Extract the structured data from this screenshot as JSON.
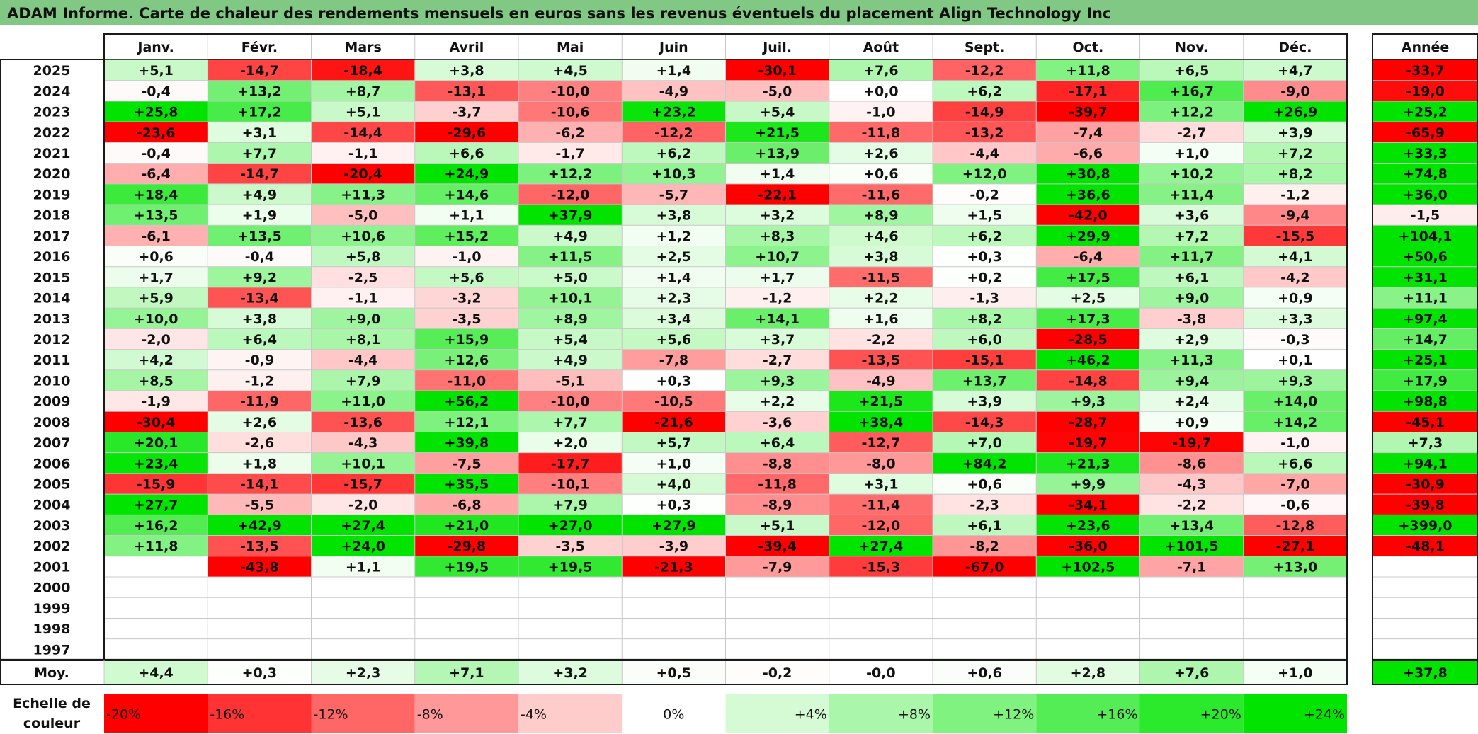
{
  "title": "ADAM Informe. Carte de chaleur des rendements mensuels en euros sans les revenus éventuels du placement Align Technology Inc",
  "chart_data": {
    "type": "heatmap",
    "title": "ADAM Informe. Carte de chaleur des rendements mensuels en euros sans les revenus éventuels du placement Align Technology Inc",
    "months": [
      "Janv.",
      "Févr.",
      "Mars",
      "Avril",
      "Mai",
      "Juin",
      "Juil.",
      "Août",
      "Sept.",
      "Oct.",
      "Nov.",
      "Déc."
    ],
    "annual_header": "Année",
    "rows": [
      {
        "year": "2025",
        "values": [
          "+5,1",
          "-14,7",
          "-18,4",
          "+3,8",
          "+4,5",
          "+1,4",
          "-30,1",
          "+7,6",
          "-12,2",
          "+11,8",
          "+6,5",
          "+4,7"
        ],
        "annual": "-33,7"
      },
      {
        "year": "2024",
        "values": [
          "-0,4",
          "+13,2",
          "+8,7",
          "-13,1",
          "-10,0",
          "-4,9",
          "-5,0",
          "+0,0",
          "+6,2",
          "-17,1",
          "+16,7",
          "-9,0"
        ],
        "annual": "-19,0"
      },
      {
        "year": "2023",
        "values": [
          "+25,8",
          "+17,2",
          "+5,1",
          "-3,7",
          "-10,6",
          "+23,2",
          "+5,4",
          "-1,0",
          "-14,9",
          "-39,7",
          "+12,2",
          "+26,9"
        ],
        "annual": "+25,2"
      },
      {
        "year": "2022",
        "values": [
          "-23,6",
          "+3,1",
          "-14,4",
          "-29,6",
          "-6,2",
          "-12,2",
          "+21,5",
          "-11,8",
          "-13,2",
          "-7,4",
          "-2,7",
          "+3,9"
        ],
        "annual": "-65,9"
      },
      {
        "year": "2021",
        "values": [
          "-0,4",
          "+7,7",
          "-1,1",
          "+6,6",
          "-1,7",
          "+6,2",
          "+13,9",
          "+2,6",
          "-4,4",
          "-6,6",
          "+1,0",
          "+7,2"
        ],
        "annual": "+33,3"
      },
      {
        "year": "2020",
        "values": [
          "-6,4",
          "-14,7",
          "-20,4",
          "+24,9",
          "+12,2",
          "+10,3",
          "+1,4",
          "+0,6",
          "+12,0",
          "+30,8",
          "+10,2",
          "+8,2"
        ],
        "annual": "+74,8"
      },
      {
        "year": "2019",
        "values": [
          "+18,4",
          "+4,9",
          "+11,3",
          "+14,6",
          "-12,0",
          "-5,7",
          "-22,1",
          "-11,6",
          "-0,2",
          "+36,6",
          "+11,4",
          "-1,2"
        ],
        "annual": "+36,0"
      },
      {
        "year": "2018",
        "values": [
          "+13,5",
          "+1,9",
          "-5,0",
          "+1,1",
          "+37,9",
          "+3,8",
          "+3,2",
          "+8,9",
          "+1,5",
          "-42,0",
          "+3,6",
          "-9,4"
        ],
        "annual": "-1,5"
      },
      {
        "year": "2017",
        "values": [
          "-6,1",
          "+13,5",
          "+10,6",
          "+15,2",
          "+4,9",
          "+1,2",
          "+8,3",
          "+4,6",
          "+6,2",
          "+29,9",
          "+7,2",
          "-15,5"
        ],
        "annual": "+104,1"
      },
      {
        "year": "2016",
        "values": [
          "+0,6",
          "-0,4",
          "+5,8",
          "-1,0",
          "+11,5",
          "+2,5",
          "+10,7",
          "+3,8",
          "+0,3",
          "-6,4",
          "+11,7",
          "+4,1"
        ],
        "annual": "+50,6"
      },
      {
        "year": "2015",
        "values": [
          "+1,7",
          "+9,2",
          "-2,5",
          "+5,6",
          "+5,0",
          "+1,4",
          "+1,7",
          "-11,5",
          "+0,2",
          "+17,5",
          "+6,1",
          "-4,2"
        ],
        "annual": "+31,1"
      },
      {
        "year": "2014",
        "values": [
          "+5,9",
          "-13,4",
          "-1,1",
          "-3,2",
          "+10,1",
          "+2,3",
          "-1,2",
          "+2,2",
          "-1,3",
          "+2,5",
          "+9,0",
          "+0,9"
        ],
        "annual": "+11,1"
      },
      {
        "year": "2013",
        "values": [
          "+10,0",
          "+3,8",
          "+9,0",
          "-3,5",
          "+8,9",
          "+3,4",
          "+14,1",
          "+1,6",
          "+8,2",
          "+17,3",
          "-3,8",
          "+3,3"
        ],
        "annual": "+97,4"
      },
      {
        "year": "2012",
        "values": [
          "-2,0",
          "+6,4",
          "+8,1",
          "+15,9",
          "+5,4",
          "+5,6",
          "+3,7",
          "-2,2",
          "+6,0",
          "-28,5",
          "+2,9",
          "-0,3"
        ],
        "annual": "+14,7"
      },
      {
        "year": "2011",
        "values": [
          "+4,2",
          "-0,9",
          "-4,4",
          "+12,6",
          "+4,9",
          "-7,8",
          "-2,7",
          "-13,5",
          "-15,1",
          "+46,2",
          "+11,3",
          "+0,1"
        ],
        "annual": "+25,1"
      },
      {
        "year": "2010",
        "values": [
          "+8,5",
          "-1,2",
          "+7,9",
          "-11,0",
          "-5,1",
          "+0,3",
          "+9,3",
          "-4,9",
          "+13,7",
          "-14,8",
          "+9,4",
          "+9,3"
        ],
        "annual": "+17,9"
      },
      {
        "year": "2009",
        "values": [
          "-1,9",
          "-11,9",
          "+11,0",
          "+56,2",
          "-10,0",
          "-10,5",
          "+2,2",
          "+21,5",
          "+3,9",
          "+9,3",
          "+2,4",
          "+14,0"
        ],
        "annual": "+98,8"
      },
      {
        "year": "2008",
        "values": [
          "-30,4",
          "+2,6",
          "-13,6",
          "+12,1",
          "+7,7",
          "-21,6",
          "-3,6",
          "+38,4",
          "-14,3",
          "-28,7",
          "+0,9",
          "+14,2"
        ],
        "annual": "-45,1"
      },
      {
        "year": "2007",
        "values": [
          "+20,1",
          "-2,6",
          "-4,3",
          "+39,8",
          "+2,0",
          "+5,7",
          "+6,4",
          "-12,7",
          "+7,0",
          "-19,7",
          "-19,7",
          "-1,0"
        ],
        "annual": "+7,3"
      },
      {
        "year": "2006",
        "values": [
          "+23,4",
          "+1,8",
          "+10,1",
          "-7,5",
          "-17,7",
          "+1,0",
          "-8,8",
          "-8,0",
          "+84,2",
          "+21,3",
          "-8,6",
          "+6,6"
        ],
        "annual": "+94,1"
      },
      {
        "year": "2005",
        "values": [
          "-15,9",
          "-14,1",
          "-15,7",
          "+35,5",
          "-10,1",
          "+4,0",
          "-11,8",
          "+3,1",
          "+0,6",
          "+9,9",
          "-4,3",
          "-7,0"
        ],
        "annual": "-30,9"
      },
      {
        "year": "2004",
        "values": [
          "+27,7",
          "-5,5",
          "-2,0",
          "-6,8",
          "+7,9",
          "+0,3",
          "-8,9",
          "-11,4",
          "-2,3",
          "-34,1",
          "-2,2",
          "-0,6"
        ],
        "annual": "-39,8"
      },
      {
        "year": "2003",
        "values": [
          "+16,2",
          "+42,9",
          "+27,4",
          "+21,0",
          "+27,0",
          "+27,9",
          "+5,1",
          "-12,0",
          "+6,1",
          "+23,6",
          "+13,4",
          "-12,8"
        ],
        "annual": "+399,0"
      },
      {
        "year": "2002",
        "values": [
          "+11,8",
          "-13,5",
          "+24,0",
          "-29,8",
          "-3,5",
          "-3,9",
          "-39,4",
          "+27,4",
          "-8,2",
          "-36,0",
          "+101,5",
          "-27,1"
        ],
        "annual": "-48,1"
      },
      {
        "year": "2001",
        "values": [
          "",
          "-43,8",
          "+1,1",
          "+19,5",
          "+19,5",
          "-21,3",
          "-7,9",
          "-15,3",
          "-67,0",
          "+102,5",
          "-7,1",
          "+13,0"
        ],
        "annual": ""
      },
      {
        "year": "2000",
        "values": [
          "",
          "",
          "",
          "",
          "",
          "",
          "",
          "",
          "",
          "",
          "",
          ""
        ],
        "annual": ""
      },
      {
        "year": "1999",
        "values": [
          "",
          "",
          "",
          "",
          "",
          "",
          "",
          "",
          "",
          "",
          "",
          ""
        ],
        "annual": ""
      },
      {
        "year": "1998",
        "values": [
          "",
          "",
          "",
          "",
          "",
          "",
          "",
          "",
          "",
          "",
          "",
          ""
        ],
        "annual": ""
      },
      {
        "year": "1997",
        "values": [
          "",
          "",
          "",
          "",
          "",
          "",
          "",
          "",
          "",
          "",
          "",
          ""
        ],
        "annual": ""
      }
    ],
    "average": {
      "label": "Moy.",
      "values": [
        "+4,4",
        "+0,3",
        "+2,3",
        "+7,1",
        "+3,2",
        "+0,5",
        "-0,2",
        "-0,0",
        "+0,6",
        "+2,8",
        "+7,6",
        "+1,0"
      ],
      "annual": "+37,8"
    },
    "color_scale": {
      "title_lines": [
        "Echelle de",
        "couleur"
      ],
      "labels": [
        "-20%",
        "-16%",
        "-12%",
        "-8%",
        "-4%",
        "0%",
        "+4%",
        "+8%",
        "+12%",
        "+16%",
        "+20%",
        "+24%"
      ],
      "negative_color": "#ff0000",
      "positive_color": "#00e400",
      "neutral_color": "#ffffff"
    }
  }
}
